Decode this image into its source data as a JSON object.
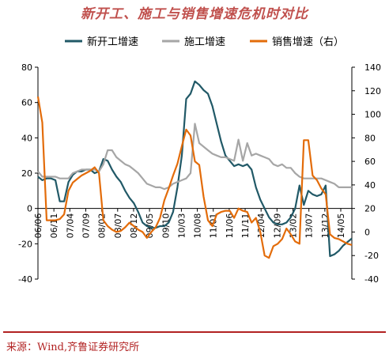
{
  "title": "新开工、施工与销售增速危机时对比",
  "source": {
    "label": "来源：",
    "text": "Wind,齐鲁证券研究所"
  },
  "chart_data": {
    "type": "line",
    "left_axis": {
      "ylim": [
        -40,
        80
      ],
      "ticks": [
        -40,
        -20,
        0,
        20,
        40,
        60,
        80
      ]
    },
    "right_axis": {
      "ylim": [
        -40,
        140
      ],
      "ticks": [
        -40,
        -20,
        0,
        20,
        40,
        60,
        80,
        100,
        120,
        140
      ]
    },
    "x_tick_labels": [
      "06/06",
      "06/11",
      "07/04",
      "07/09",
      "08/02",
      "08/07",
      "08/12",
      "09/05",
      "09/10",
      "10/03",
      "10/08",
      "11/01",
      "11/06",
      "11/11",
      "12/04",
      "12/09",
      "13/02",
      "13/07",
      "13/12",
      "14/05"
    ],
    "legend_position": "top",
    "grid": false,
    "series": [
      {
        "name": "新开工增速",
        "axis": "left",
        "color": "#215967",
        "points": [
          [
            0,
            18
          ],
          [
            1,
            16
          ],
          [
            2,
            17
          ],
          [
            3,
            17
          ],
          [
            4,
            16
          ],
          [
            5,
            4
          ],
          [
            6,
            4
          ],
          [
            7,
            15
          ],
          [
            8,
            19
          ],
          [
            9,
            21
          ],
          [
            10,
            21
          ],
          [
            11,
            22
          ],
          [
            12,
            22
          ],
          [
            13,
            20
          ],
          [
            14,
            21
          ],
          [
            15,
            28
          ],
          [
            16,
            27
          ],
          [
            17,
            22
          ],
          [
            18,
            18
          ],
          [
            19,
            15
          ],
          [
            20,
            10
          ],
          [
            21,
            6
          ],
          [
            22,
            3
          ],
          [
            23,
            -2
          ],
          [
            24,
            -8
          ],
          [
            25,
            -10
          ],
          [
            26,
            -11
          ],
          [
            27,
            -11
          ],
          [
            28,
            -10
          ],
          [
            29,
            -10
          ],
          [
            30,
            -8
          ],
          [
            31,
            -2
          ],
          [
            32,
            12
          ],
          [
            33,
            30
          ],
          [
            34,
            62
          ],
          [
            35,
            65
          ],
          [
            36,
            72
          ],
          [
            37,
            70
          ],
          [
            38,
            67
          ],
          [
            39,
            65
          ],
          [
            40,
            58
          ],
          [
            41,
            48
          ],
          [
            42,
            38
          ],
          [
            43,
            30
          ],
          [
            44,
            27
          ],
          [
            45,
            24
          ],
          [
            46,
            25
          ],
          [
            47,
            24
          ],
          [
            48,
            25
          ],
          [
            49,
            22
          ],
          [
            50,
            12
          ],
          [
            51,
            5
          ],
          [
            52,
            0
          ],
          [
            53,
            -5
          ],
          [
            54,
            -8
          ],
          [
            55,
            -9
          ],
          [
            56,
            -9
          ],
          [
            57,
            -8
          ],
          [
            58,
            -5
          ],
          [
            59,
            0
          ],
          [
            60,
            13
          ],
          [
            61,
            2
          ],
          [
            62,
            10
          ],
          [
            63,
            8
          ],
          [
            64,
            7
          ],
          [
            65,
            8
          ],
          [
            66,
            13
          ],
          [
            67,
            -27
          ],
          [
            68,
            -26
          ],
          [
            69,
            -24
          ],
          [
            70,
            -21
          ],
          [
            71,
            -19
          ],
          [
            72,
            -17
          ]
        ]
      },
      {
        "name": "施工增速",
        "axis": "left",
        "color": "#a6a6a6",
        "points": [
          [
            0,
            21
          ],
          [
            1,
            18
          ],
          [
            2,
            18
          ],
          [
            3,
            18
          ],
          [
            4,
            18
          ],
          [
            5,
            17
          ],
          [
            6,
            17
          ],
          [
            7,
            17
          ],
          [
            8,
            20
          ],
          [
            9,
            21
          ],
          [
            10,
            22
          ],
          [
            11,
            22
          ],
          [
            12,
            22
          ],
          [
            13,
            22
          ],
          [
            14,
            21
          ],
          [
            15,
            25
          ],
          [
            16,
            33
          ],
          [
            17,
            33
          ],
          [
            18,
            29
          ],
          [
            19,
            27
          ],
          [
            20,
            25
          ],
          [
            21,
            24
          ],
          [
            22,
            22
          ],
          [
            23,
            20
          ],
          [
            24,
            17
          ],
          [
            25,
            14
          ],
          [
            26,
            13
          ],
          [
            27,
            12
          ],
          [
            28,
            12
          ],
          [
            29,
            11
          ],
          [
            30,
            12
          ],
          [
            31,
            14
          ],
          [
            32,
            15
          ],
          [
            33,
            16
          ],
          [
            34,
            17
          ],
          [
            35,
            20
          ],
          [
            36,
            48
          ],
          [
            37,
            37
          ],
          [
            38,
            35
          ],
          [
            39,
            33
          ],
          [
            40,
            31
          ],
          [
            41,
            30
          ],
          [
            42,
            29
          ],
          [
            43,
            29
          ],
          [
            44,
            28
          ],
          [
            45,
            27
          ],
          [
            46,
            39
          ],
          [
            47,
            27
          ],
          [
            48,
            37
          ],
          [
            49,
            30
          ],
          [
            50,
            31
          ],
          [
            51,
            30
          ],
          [
            52,
            29
          ],
          [
            53,
            28
          ],
          [
            54,
            25
          ],
          [
            55,
            24
          ],
          [
            56,
            25
          ],
          [
            57,
            23
          ],
          [
            58,
            23
          ],
          [
            59,
            20
          ],
          [
            60,
            18
          ],
          [
            61,
            17
          ],
          [
            62,
            17
          ],
          [
            63,
            17
          ],
          [
            64,
            17
          ],
          [
            65,
            17
          ],
          [
            66,
            16
          ],
          [
            67,
            15
          ],
          [
            68,
            14
          ],
          [
            69,
            12
          ],
          [
            70,
            12
          ],
          [
            71,
            12
          ],
          [
            72,
            12
          ]
        ]
      },
      {
        "name": "销售增速（右）",
        "axis": "right",
        "color": "#e36c0a",
        "points": [
          [
            0,
            115
          ],
          [
            1,
            93
          ],
          [
            2,
            10
          ],
          [
            3,
            10
          ],
          [
            4,
            10
          ],
          [
            5,
            11
          ],
          [
            6,
            15
          ],
          [
            7,
            35
          ],
          [
            8,
            42
          ],
          [
            9,
            45
          ],
          [
            10,
            48
          ],
          [
            11,
            50
          ],
          [
            12,
            52
          ],
          [
            13,
            55
          ],
          [
            14,
            50
          ],
          [
            15,
            10
          ],
          [
            16,
            5
          ],
          [
            17,
            2
          ],
          [
            18,
            0
          ],
          [
            19,
            1
          ],
          [
            20,
            4
          ],
          [
            21,
            8
          ],
          [
            22,
            5
          ],
          [
            23,
            2
          ],
          [
            24,
            0
          ],
          [
            25,
            -5
          ],
          [
            26,
            0
          ],
          [
            27,
            4
          ],
          [
            28,
            12
          ],
          [
            29,
            27
          ],
          [
            30,
            37
          ],
          [
            31,
            48
          ],
          [
            32,
            58
          ],
          [
            33,
            73
          ],
          [
            34,
            87
          ],
          [
            35,
            82
          ],
          [
            36,
            60
          ],
          [
            37,
            57
          ],
          [
            38,
            30
          ],
          [
            39,
            10
          ],
          [
            40,
            5
          ],
          [
            41,
            15
          ],
          [
            42,
            17
          ],
          [
            43,
            18
          ],
          [
            44,
            18
          ],
          [
            45,
            12
          ],
          [
            46,
            20
          ],
          [
            47,
            18
          ],
          [
            48,
            17
          ],
          [
            49,
            8
          ],
          [
            50,
            12
          ],
          [
            51,
            0
          ],
          [
            52,
            -20
          ],
          [
            53,
            -22
          ],
          [
            54,
            -12
          ],
          [
            55,
            -10
          ],
          [
            56,
            -6
          ],
          [
            57,
            3
          ],
          [
            58,
            -2
          ],
          [
            59,
            -8
          ],
          [
            60,
            -10
          ],
          [
            61,
            78
          ],
          [
            62,
            78
          ],
          [
            63,
            48
          ],
          [
            64,
            44
          ],
          [
            65,
            37
          ],
          [
            66,
            32
          ],
          [
            67,
            -2
          ],
          [
            68,
            -5
          ],
          [
            69,
            -6
          ],
          [
            70,
            -8
          ],
          [
            71,
            -10
          ],
          [
            72,
            -11
          ]
        ]
      }
    ]
  }
}
